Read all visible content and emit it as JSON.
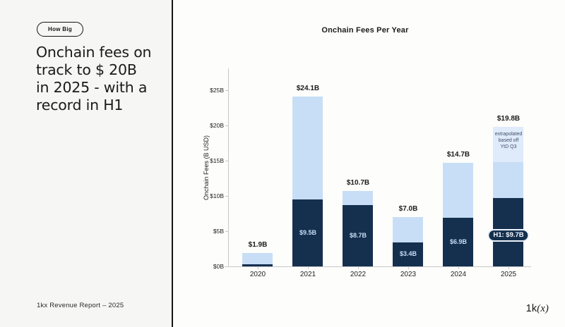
{
  "left_panel": {
    "badge": "How Big",
    "title": "Onchain fees on\ntrack to $ 20B\nin 2025 - with a\nrecord in H1",
    "footer": "1kx Revenue Report  – 2025"
  },
  "logo": {
    "regular": "1k",
    "italic": "(x)"
  },
  "colors": {
    "navy": "#15304e",
    "light_blue": "#c8def6",
    "pale_blue": "#dfeafa",
    "axis": "#c8c8c8"
  },
  "chart_data": {
    "type": "bar",
    "stacked": true,
    "title": "Onchain Fees Per Year",
    "ylabel": "Onchain Fees (B USD)",
    "ylim": [
      0,
      27
    ],
    "grid": false,
    "legend": "none",
    "yticks": [
      {
        "value": 0,
        "label": "$0B"
      },
      {
        "value": 5,
        "label": "$5B"
      },
      {
        "value": 10,
        "label": "$10B"
      },
      {
        "value": 15,
        "label": "$15B"
      },
      {
        "value": 20,
        "label": "$20B"
      },
      {
        "value": 25,
        "label": "$25B"
      }
    ],
    "categories": [
      "2020",
      "2021",
      "2022",
      "2023",
      "2024",
      "2025"
    ],
    "totals": [
      1.9,
      24.1,
      10.7,
      7.0,
      14.7,
      19.8
    ],
    "total_labels": [
      "$1.9B",
      "$24.1B",
      "$10.7B",
      "$7.0B",
      "$14.7B",
      "$19.8B"
    ],
    "series": [
      {
        "name": "actual-dark",
        "color_key": "navy",
        "values": [
          0.3,
          9.5,
          8.7,
          3.4,
          6.9,
          9.7
        ],
        "labels": [
          "",
          "$9.5B",
          "$8.7B",
          "$3.4B",
          "$6.9B",
          ""
        ]
      },
      {
        "name": "actual-light",
        "color_key": "light_blue",
        "values": [
          1.6,
          14.6,
          2.0,
          3.6,
          7.8,
          5.1
        ],
        "labels": [
          "",
          "",
          "",
          "",
          "",
          ""
        ]
      },
      {
        "name": "extrapolated",
        "color_key": "pale_blue",
        "values": [
          0,
          0,
          0,
          0,
          0,
          5.0
        ],
        "labels": [
          "",
          "",
          "",
          "",
          "",
          ""
        ]
      }
    ],
    "annotations": [
      {
        "type": "note",
        "bar": 5,
        "text": "extrapolated\nbased off\nYtD Q3"
      },
      {
        "type": "pill",
        "bar": 5,
        "text": "H1: $9.7B"
      }
    ]
  }
}
